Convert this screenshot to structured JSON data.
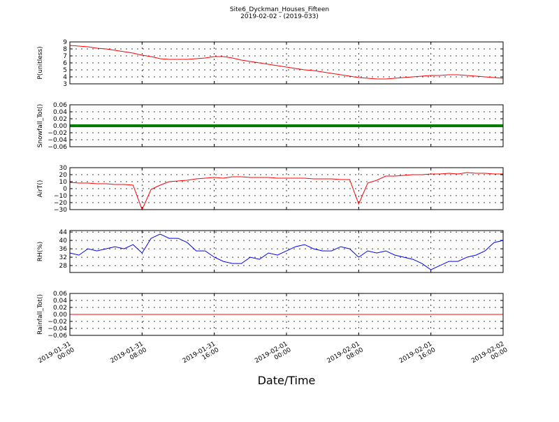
{
  "title": "Site6_Dyckman_Houses_Fifteen",
  "subtitle": "2019-02-02 - (2019-033)",
  "x_label": "Date/Time",
  "chart_data": [
    {
      "type": "line",
      "y_label": "P(unitless)",
      "grid": true,
      "xlim": [
        "2019-01-31 00:00",
        "2019-02-02 00:00"
      ],
      "xticks": [
        "2019-01-31 00:00",
        "2019-01-31 08:00",
        "2019-01-31 16:00",
        "2019-02-01 00:00",
        "2019-02-01 08:00",
        "2019-02-01 16:00",
        "2019-02-02 00:00"
      ],
      "ylim": [
        3,
        9
      ],
      "yticks": [
        3,
        4,
        5,
        6,
        7,
        8,
        9
      ],
      "x": [
        "2019-01-31 00:00",
        "2019-01-31 01:00",
        "2019-01-31 02:00",
        "2019-01-31 03:00",
        "2019-01-31 04:00",
        "2019-01-31 05:00",
        "2019-01-31 06:00",
        "2019-01-31 07:00",
        "2019-01-31 08:00",
        "2019-01-31 09:00",
        "2019-01-31 10:00",
        "2019-01-31 11:00",
        "2019-01-31 12:00",
        "2019-01-31 13:00",
        "2019-01-31 14:00",
        "2019-01-31 15:00",
        "2019-01-31 16:00",
        "2019-01-31 17:00",
        "2019-01-31 18:00",
        "2019-01-31 19:00",
        "2019-01-31 20:00",
        "2019-01-31 21:00",
        "2019-01-31 22:00",
        "2019-01-31 23:00",
        "2019-02-01 00:00",
        "2019-02-01 01:00",
        "2019-02-01 02:00",
        "2019-02-01 03:00",
        "2019-02-01 04:00",
        "2019-02-01 05:00",
        "2019-02-01 06:00",
        "2019-02-01 07:00",
        "2019-02-01 08:00",
        "2019-02-01 09:00",
        "2019-02-01 10:00",
        "2019-02-01 11:00",
        "2019-02-01 12:00",
        "2019-02-01 13:00",
        "2019-02-01 14:00",
        "2019-02-01 15:00",
        "2019-02-01 16:00",
        "2019-02-01 17:00",
        "2019-02-01 18:00",
        "2019-02-01 19:00",
        "2019-02-01 20:00",
        "2019-02-01 21:00",
        "2019-02-01 22:00",
        "2019-02-01 23:00",
        "2019-02-02 00:00"
      ],
      "series": [
        {
          "color": "#ff0000",
          "line_width": 1,
          "values": [
            8.5,
            8.4,
            8.3,
            8.1,
            8.0,
            7.8,
            7.6,
            7.4,
            7.1,
            6.9,
            6.6,
            6.5,
            6.5,
            6.5,
            6.6,
            6.7,
            6.9,
            6.9,
            6.7,
            6.4,
            6.2,
            6.0,
            5.8,
            5.6,
            5.4,
            5.2,
            5.0,
            4.9,
            4.7,
            4.5,
            4.3,
            4.1,
            3.9,
            3.8,
            3.7,
            3.7,
            3.8,
            3.9,
            4.0,
            4.1,
            4.2,
            4.2,
            4.3,
            4.3,
            4.2,
            4.1,
            4.0,
            3.9,
            3.8
          ]
        }
      ]
    },
    {
      "type": "line",
      "y_label": "Snowfall_Tot()",
      "grid": true,
      "xlim": [
        "2019-01-31 00:00",
        "2019-02-02 00:00"
      ],
      "xticks": [
        "2019-01-31 00:00",
        "2019-01-31 08:00",
        "2019-01-31 16:00",
        "2019-02-01 00:00",
        "2019-02-01 08:00",
        "2019-02-01 16:00",
        "2019-02-02 00:00"
      ],
      "ylim": [
        -0.06,
        0.06
      ],
      "yticks": [
        {
          "value": -0.06,
          "label": "−0.06"
        },
        {
          "value": -0.04,
          "label": "−0.04"
        },
        {
          "value": -0.02,
          "label": "−0.02"
        },
        {
          "value": 0,
          "label": "0.00"
        },
        0.02,
        0.04,
        0.06
      ],
      "x": [
        "2019-01-31 00:00",
        "2019-01-31 01:00",
        "2019-01-31 02:00",
        "2019-01-31 03:00",
        "2019-01-31 04:00",
        "2019-01-31 05:00",
        "2019-01-31 06:00",
        "2019-01-31 07:00",
        "2019-01-31 08:00",
        "2019-01-31 09:00",
        "2019-01-31 10:00",
        "2019-01-31 11:00",
        "2019-01-31 12:00",
        "2019-01-31 13:00",
        "2019-01-31 14:00",
        "2019-01-31 15:00",
        "2019-01-31 16:00",
        "2019-01-31 17:00",
        "2019-01-31 18:00",
        "2019-01-31 19:00",
        "2019-01-31 20:00",
        "2019-01-31 21:00",
        "2019-01-31 22:00",
        "2019-01-31 23:00",
        "2019-02-01 00:00",
        "2019-02-01 01:00",
        "2019-02-01 02:00",
        "2019-02-01 03:00",
        "2019-02-01 04:00",
        "2019-02-01 05:00",
        "2019-02-01 06:00",
        "2019-02-01 07:00",
        "2019-02-01 08:00",
        "2019-02-01 09:00",
        "2019-02-01 10:00",
        "2019-02-01 11:00",
        "2019-02-01 12:00",
        "2019-02-01 13:00",
        "2019-02-01 14:00",
        "2019-02-01 15:00",
        "2019-02-01 16:00",
        "2019-02-01 17:00",
        "2019-02-01 18:00",
        "2019-02-01 19:00",
        "2019-02-01 20:00",
        "2019-02-01 21:00",
        "2019-02-01 22:00",
        "2019-02-01 23:00",
        "2019-02-02 00:00"
      ],
      "series": [
        {
          "color": "#008000",
          "line_width": 4,
          "values": [
            0,
            0,
            0,
            0,
            0,
            0,
            0,
            0,
            0,
            0,
            0,
            0,
            0,
            0,
            0,
            0,
            0,
            0,
            0,
            0,
            0,
            0,
            0,
            0,
            0,
            0,
            0,
            0,
            0,
            0,
            0,
            0,
            0,
            0,
            0,
            0,
            0,
            0,
            0,
            0,
            0,
            0,
            0,
            0,
            0,
            0,
            0,
            0,
            0
          ]
        }
      ]
    },
    {
      "type": "line",
      "y_label": "AirT()",
      "grid": true,
      "xlim": [
        "2019-01-31 00:00",
        "2019-02-02 00:00"
      ],
      "xticks": [
        "2019-01-31 00:00",
        "2019-01-31 08:00",
        "2019-01-31 16:00",
        "2019-02-01 00:00",
        "2019-02-01 08:00",
        "2019-02-01 16:00",
        "2019-02-02 00:00"
      ],
      "ylim": [
        -30,
        30
      ],
      "yticks": [
        {
          "value": -30,
          "label": "−30"
        },
        {
          "value": -20,
          "label": "−20"
        },
        {
          "value": -10,
          "label": "−10"
        },
        0,
        10,
        20,
        30
      ],
      "x": [
        "2019-01-31 00:00",
        "2019-01-31 01:00",
        "2019-01-31 02:00",
        "2019-01-31 03:00",
        "2019-01-31 04:00",
        "2019-01-31 05:00",
        "2019-01-31 06:00",
        "2019-01-31 07:00",
        "2019-01-31 08:00",
        "2019-01-31 09:00",
        "2019-01-31 10:00",
        "2019-01-31 11:00",
        "2019-01-31 12:00",
        "2019-01-31 13:00",
        "2019-01-31 14:00",
        "2019-01-31 15:00",
        "2019-01-31 16:00",
        "2019-01-31 17:00",
        "2019-01-31 18:00",
        "2019-01-31 19:00",
        "2019-01-31 20:00",
        "2019-01-31 21:00",
        "2019-01-31 22:00",
        "2019-01-31 23:00",
        "2019-02-01 00:00",
        "2019-02-01 01:00",
        "2019-02-01 02:00",
        "2019-02-01 03:00",
        "2019-02-01 04:00",
        "2019-02-01 05:00",
        "2019-02-01 06:00",
        "2019-02-01 07:00",
        "2019-02-01 08:00",
        "2019-02-01 09:00",
        "2019-02-01 10:00",
        "2019-02-01 11:00",
        "2019-02-01 12:00",
        "2019-02-01 13:00",
        "2019-02-01 14:00",
        "2019-02-01 15:00",
        "2019-02-01 16:00",
        "2019-02-01 17:00",
        "2019-02-01 18:00",
        "2019-02-01 19:00",
        "2019-02-01 20:00",
        "2019-02-01 21:00",
        "2019-02-01 22:00",
        "2019-02-01 23:00",
        "2019-02-02 00:00"
      ],
      "series": [
        {
          "color": "#ff0000",
          "line_width": 1,
          "values": [
            9,
            8,
            8,
            7,
            7,
            6,
            6,
            5,
            -30,
            -1,
            5,
            10,
            11,
            12,
            14,
            15,
            16,
            15,
            17,
            17,
            16,
            16,
            16,
            15,
            15,
            15,
            15,
            14,
            14,
            14,
            13,
            13,
            -22,
            8,
            12,
            18,
            18,
            19,
            20,
            20,
            21,
            21,
            22,
            21,
            23,
            22,
            22,
            21,
            21
          ]
        }
      ]
    },
    {
      "type": "line",
      "y_label": "RH(%)",
      "grid": true,
      "xlim": [
        "2019-01-31 00:00",
        "2019-02-02 00:00"
      ],
      "xticks": [
        "2019-01-31 00:00",
        "2019-01-31 08:00",
        "2019-01-31 16:00",
        "2019-02-01 00:00",
        "2019-02-01 08:00",
        "2019-02-01 16:00",
        "2019-02-02 00:00"
      ],
      "ylim": [
        24.7,
        44.7
      ],
      "yticks": [
        28,
        32,
        36,
        40,
        44
      ],
      "x": [
        "2019-01-31 00:00",
        "2019-01-31 01:00",
        "2019-01-31 02:00",
        "2019-01-31 03:00",
        "2019-01-31 04:00",
        "2019-01-31 05:00",
        "2019-01-31 06:00",
        "2019-01-31 07:00",
        "2019-01-31 08:00",
        "2019-01-31 09:00",
        "2019-01-31 10:00",
        "2019-01-31 11:00",
        "2019-01-31 12:00",
        "2019-01-31 13:00",
        "2019-01-31 14:00",
        "2019-01-31 15:00",
        "2019-01-31 16:00",
        "2019-01-31 17:00",
        "2019-01-31 18:00",
        "2019-01-31 19:00",
        "2019-01-31 20:00",
        "2019-01-31 21:00",
        "2019-01-31 22:00",
        "2019-01-31 23:00",
        "2019-02-01 00:00",
        "2019-02-01 01:00",
        "2019-02-01 02:00",
        "2019-02-01 03:00",
        "2019-02-01 04:00",
        "2019-02-01 05:00",
        "2019-02-01 06:00",
        "2019-02-01 07:00",
        "2019-02-01 08:00",
        "2019-02-01 09:00",
        "2019-02-01 10:00",
        "2019-02-01 11:00",
        "2019-02-01 12:00",
        "2019-02-01 13:00",
        "2019-02-01 14:00",
        "2019-02-01 15:00",
        "2019-02-01 16:00",
        "2019-02-01 17:00",
        "2019-02-01 18:00",
        "2019-02-01 19:00",
        "2019-02-01 20:00",
        "2019-02-01 21:00",
        "2019-02-01 22:00",
        "2019-02-01 23:00",
        "2019-02-02 00:00"
      ],
      "series": [
        {
          "color": "#0000ff",
          "line_width": 1,
          "values": [
            34,
            33,
            36,
            35,
            36,
            37,
            36,
            38,
            34,
            41,
            43,
            41,
            41,
            39,
            35,
            35,
            32,
            30,
            29,
            29,
            32,
            31,
            34,
            33,
            35,
            37,
            38,
            36,
            35,
            35,
            37,
            36,
            32,
            35,
            34,
            35,
            33,
            32,
            31,
            29,
            26,
            28,
            30,
            30,
            32,
            33,
            35,
            39,
            40
          ]
        }
      ]
    },
    {
      "type": "line",
      "y_label": "Rainfall_Tot()",
      "grid": true,
      "x_tick_labels": true,
      "xlim": [
        "2019-01-31 00:00",
        "2019-02-02 00:00"
      ],
      "xticks": [
        "2019-01-31 00:00",
        "2019-01-31 08:00",
        "2019-01-31 16:00",
        "2019-02-01 00:00",
        "2019-02-01 08:00",
        "2019-02-01 16:00",
        "2019-02-02 00:00"
      ],
      "ylim": [
        -0.06,
        0.06
      ],
      "yticks": [
        {
          "value": -0.06,
          "label": "−0.06"
        },
        {
          "value": -0.04,
          "label": "−0.04"
        },
        {
          "value": -0.02,
          "label": "−0.02"
        },
        {
          "value": 0,
          "label": "0.00"
        },
        0.02,
        0.04,
        0.06
      ],
      "x": [
        "2019-01-31 00:00",
        "2019-01-31 01:00",
        "2019-01-31 02:00",
        "2019-01-31 03:00",
        "2019-01-31 04:00",
        "2019-01-31 05:00",
        "2019-01-31 06:00",
        "2019-01-31 07:00",
        "2019-01-31 08:00",
        "2019-01-31 09:00",
        "2019-01-31 10:00",
        "2019-01-31 11:00",
        "2019-01-31 12:00",
        "2019-01-31 13:00",
        "2019-01-31 14:00",
        "2019-01-31 15:00",
        "2019-01-31 16:00",
        "2019-01-31 17:00",
        "2019-01-31 18:00",
        "2019-01-31 19:00",
        "2019-01-31 20:00",
        "2019-01-31 21:00",
        "2019-01-31 22:00",
        "2019-01-31 23:00",
        "2019-02-01 00:00",
        "2019-02-01 01:00",
        "2019-02-01 02:00",
        "2019-02-01 03:00",
        "2019-02-01 04:00",
        "2019-02-01 05:00",
        "2019-02-01 06:00",
        "2019-02-01 07:00",
        "2019-02-01 08:00",
        "2019-02-01 09:00",
        "2019-02-01 10:00",
        "2019-02-01 11:00",
        "2019-02-01 12:00",
        "2019-02-01 13:00",
        "2019-02-01 14:00",
        "2019-02-01 15:00",
        "2019-02-01 16:00",
        "2019-02-01 17:00",
        "2019-02-01 18:00",
        "2019-02-01 19:00",
        "2019-02-01 20:00",
        "2019-02-01 21:00",
        "2019-02-01 22:00",
        "2019-02-01 23:00",
        "2019-02-02 00:00"
      ],
      "series": [
        {
          "color": "#ff0000",
          "line_width": 1,
          "values": [
            0,
            0,
            0,
            0,
            0,
            0,
            0,
            0,
            0,
            0,
            0,
            0,
            0,
            0,
            0,
            0,
            0,
            0,
            0,
            0,
            0,
            0,
            0,
            0,
            0,
            0,
            0,
            0,
            0,
            0,
            0,
            0,
            0,
            0,
            0,
            0,
            0,
            0,
            0,
            0,
            0,
            0,
            0,
            0,
            0,
            0,
            0,
            0,
            0
          ]
        }
      ]
    }
  ]
}
